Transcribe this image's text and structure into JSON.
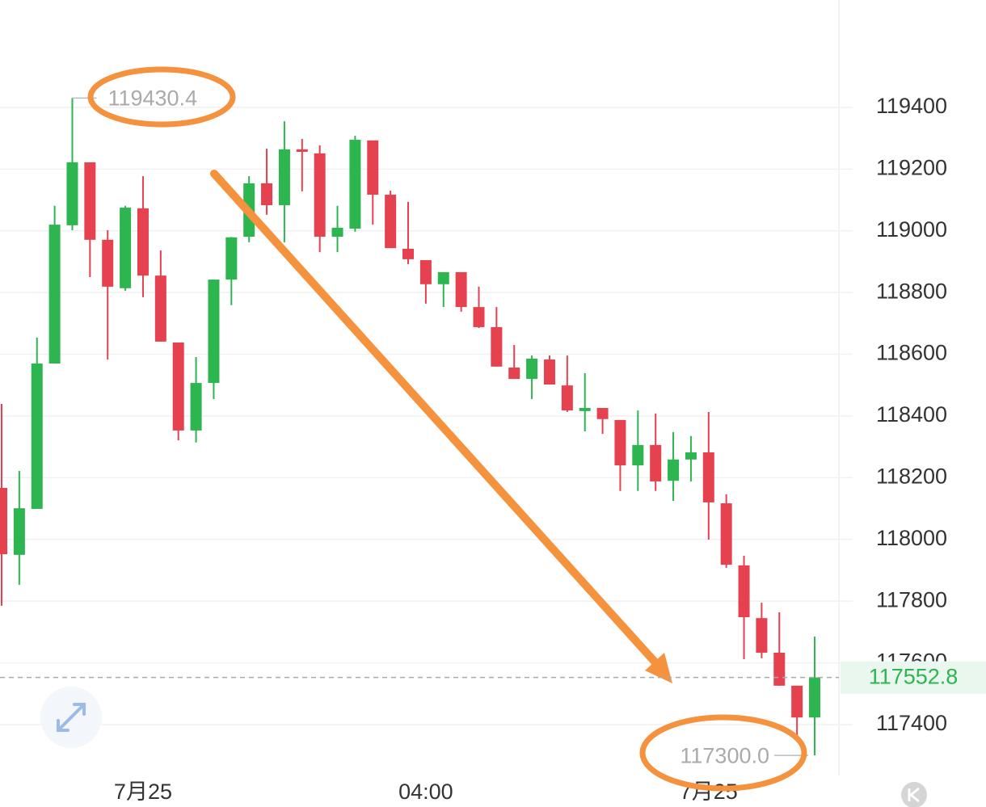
{
  "chart_data": {
    "type": "candlestick",
    "categories": [
      null,
      null,
      null,
      null,
      null,
      null,
      null,
      null,
      "7月25",
      null,
      null,
      null,
      null,
      null,
      null,
      null,
      null,
      null,
      null,
      null,
      null,
      null,
      null,
      null,
      "04:00",
      null,
      null,
      null,
      null,
      null,
      null,
      null,
      null,
      null,
      null,
      null,
      null,
      null,
      null,
      null,
      "7月25",
      null,
      null,
      null,
      null,
      null,
      null
    ],
    "open": [
      118167,
      117950,
      118099,
      118570,
      119018,
      119222,
      118971,
      118814,
      119073,
      118855,
      118638,
      118353,
      118507,
      118842,
      118981,
      119154,
      119083,
      119264,
      119251,
      118981,
      119007,
      119293,
      119117,
      118942,
      118905,
      118827,
      118866,
      118753,
      118688,
      118557,
      118520,
      118583,
      118499,
      118416,
      118426,
      118387,
      118240,
      118306,
      118190,
      118259,
      118282,
      118117,
      117916,
      117745,
      117633,
      117526,
      117423
    ],
    "high": [
      118439,
      118222,
      118654,
      119081,
      119430.4,
      119222,
      119002,
      119081,
      119177,
      118937,
      118638,
      118591,
      118842,
      118980,
      119177,
      119266,
      119355,
      119298,
      119277,
      119081,
      119308,
      119293,
      119130,
      119094,
      118905,
      118866,
      118866,
      118819,
      118753,
      118630,
      118596,
      118596,
      118596,
      118539,
      118426,
      118387,
      118418,
      118408,
      118348,
      118335,
      118413,
      118146,
      117947,
      117795,
      117764,
      117526,
      117685
    ],
    "low": [
      117785,
      117853,
      118099,
      118570,
      119002,
      118850,
      118583,
      118806,
      118785,
      118641,
      118321,
      118314,
      118455,
      118759,
      118963,
      119052,
      118963,
      119128,
      118931,
      118931,
      118997,
      119020,
      118944,
      118892,
      118764,
      118753,
      118738,
      118685,
      118560,
      118520,
      118455,
      118502,
      118413,
      118350,
      118342,
      118157,
      118157,
      118157,
      118125,
      118188,
      117999,
      117908,
      117612,
      117615,
      117526,
      117360,
      117300
    ],
    "close": [
      117952,
      118101,
      118570,
      119020,
      119222,
      118971,
      118819,
      119075,
      118855,
      118641,
      118353,
      118507,
      118842,
      118979,
      119154,
      119083,
      119264,
      119256,
      118981,
      119010,
      119295,
      119117,
      118944,
      118908,
      118827,
      118866,
      118753,
      118688,
      118560,
      118520,
      118586,
      118502,
      118418,
      118426,
      118390,
      118240,
      118306,
      118188,
      118259,
      118282,
      118120,
      117918,
      117748,
      117633,
      117526,
      117423,
      117552.8
    ],
    "up_color": "#2db550",
    "down_color": "#e5414f",
    "ylim": [
      117235,
      119748
    ],
    "yticks": [
      117400,
      117600,
      117800,
      118000,
      118200,
      118400,
      118600,
      118800,
      119000,
      119200,
      119400
    ],
    "grid": true,
    "last_price": 117552.8,
    "high_label": 119430.4,
    "low_label": {
      "value": 117300,
      "label": "117300.0"
    }
  }
}
